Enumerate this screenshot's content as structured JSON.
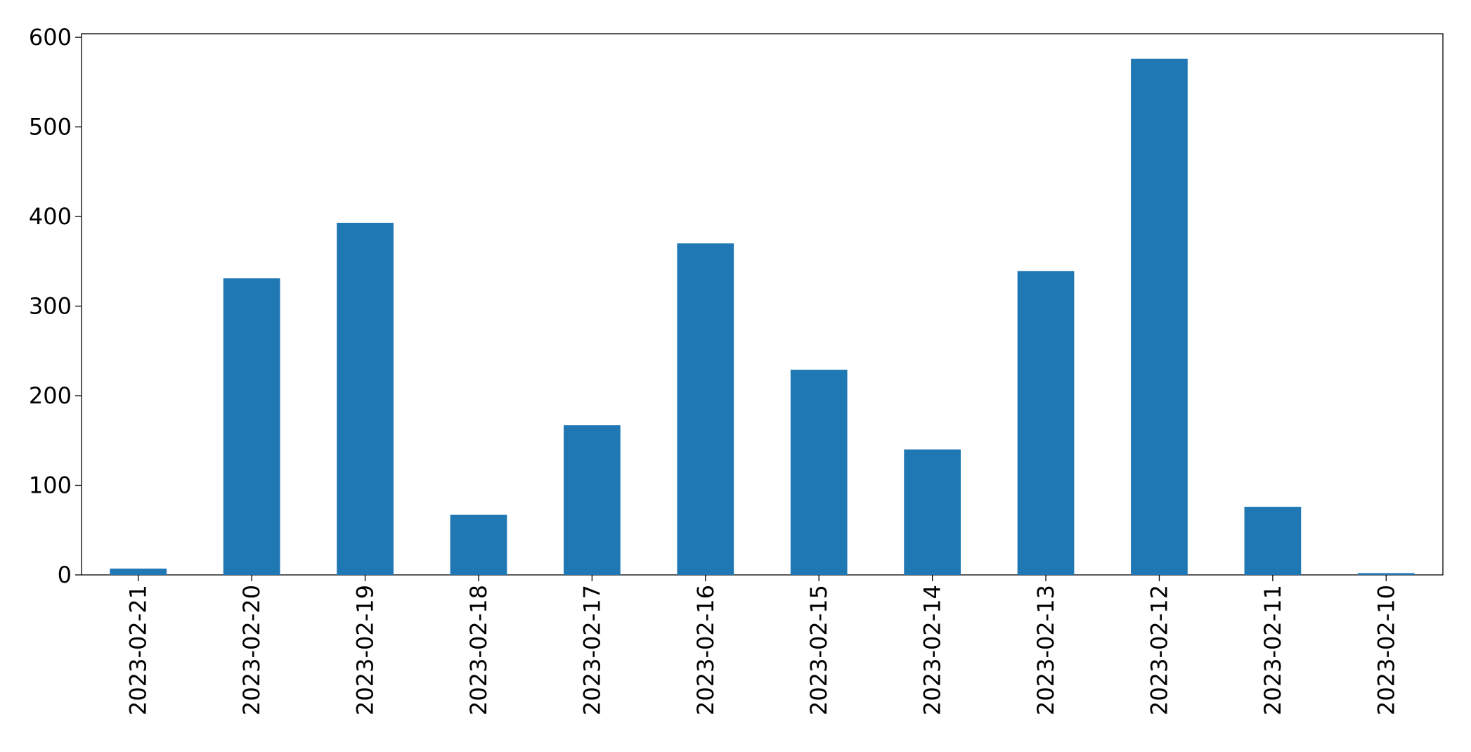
{
  "chart_data": {
    "type": "bar",
    "categories": [
      "2023-02-21",
      "2023-02-20",
      "2023-02-19",
      "2023-02-18",
      "2023-02-17",
      "2023-02-16",
      "2023-02-15",
      "2023-02-14",
      "2023-02-13",
      "2023-02-12",
      "2023-02-11",
      "2023-02-10"
    ],
    "values": [
      7,
      331,
      393,
      67,
      167,
      370,
      229,
      140,
      339,
      576,
      76,
      2
    ],
    "color": "#1f77b4",
    "ylim": [
      0,
      604
    ],
    "yticks": [
      0,
      100,
      200,
      300,
      400,
      500,
      600
    ],
    "grid": false
  }
}
